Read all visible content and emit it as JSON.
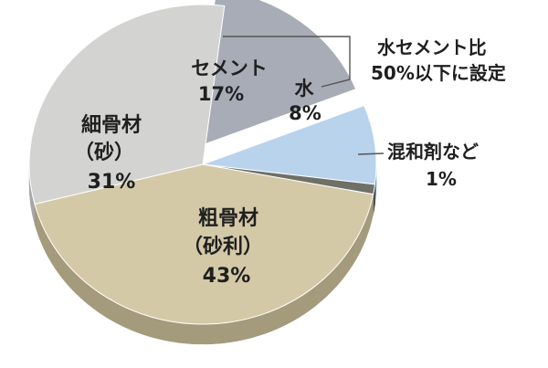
{
  "chart_data": {
    "type": "pie",
    "style": "3d",
    "slices": [
      {
        "key": "cement",
        "name": "セメント",
        "value": 17,
        "label": "17%",
        "color": "#a7acb6",
        "side": "#7b7f88"
      },
      {
        "key": "water",
        "name": "水",
        "value": 8,
        "label": "8%",
        "color": "#b9d3ec",
        "side": "#4e89c8"
      },
      {
        "key": "admixture",
        "name": "混和剤など",
        "value": 1,
        "label": "1%",
        "color": "#6f7068",
        "side": "#4a4b45"
      },
      {
        "key": "coarse",
        "name": "粗骨材",
        "sub": "（砂利）",
        "value": 43,
        "label": "43%",
        "color": "#d4c9a7",
        "side": "#a49a7c"
      },
      {
        "key": "fine",
        "name": "細骨材",
        "sub": "（砂）",
        "value": 31,
        "label": "31%",
        "color": "#d3d3d1",
        "side": "#a6a6a4"
      }
    ],
    "exploded": "cement",
    "annotation": {
      "line1": "水セメント比",
      "line2": "50%以下に設定"
    }
  }
}
